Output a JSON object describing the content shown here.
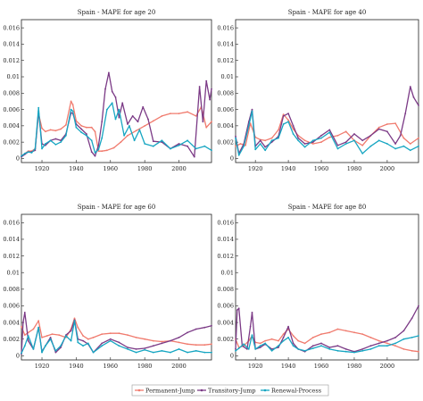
{
  "chart_data": [
    {
      "type": "line",
      "title": "Spain - MAPE for age 20",
      "xlabel": "",
      "ylabel": "",
      "xlim": [
        1908,
        2019
      ],
      "ylim": [
        -0.0005,
        0.017
      ],
      "xticks": [
        1920,
        1940,
        1960,
        1980,
        2000
      ],
      "yticks": [
        0,
        0.002,
        0.004,
        0.006,
        0.008,
        0.01,
        0.012,
        0.014,
        0.016
      ],
      "ytick_labels": [
        "0",
        "0.002",
        "0.004",
        "0.006",
        "0.008",
        "0.01",
        "0.012",
        "0.014",
        "0.016"
      ],
      "grid": false,
      "series": [
        {
          "name": "Permanent-Jump",
          "color": "#f07b6e",
          "x": [
            1908,
            1910,
            1912,
            1914,
            1916,
            1918,
            1920,
            1922,
            1925,
            1928,
            1931,
            1934,
            1937,
            1938,
            1940,
            1943,
            1946,
            1949,
            1951,
            1953,
            1955,
            1958,
            1962,
            1966,
            1970,
            1975,
            1980,
            1985,
            1990,
            1995,
            2000,
            2005,
            2010,
            2013,
            2016,
            2019
          ],
          "y": [
            0.0002,
            0.0006,
            0.0009,
            0.0009,
            0.0012,
            0.0055,
            0.0037,
            0.0033,
            0.0035,
            0.0034,
            0.0036,
            0.0041,
            0.007,
            0.0066,
            0.0046,
            0.004,
            0.0038,
            0.0038,
            0.0033,
            0.0009,
            0.0009,
            0.001,
            0.0013,
            0.002,
            0.0028,
            0.0034,
            0.004,
            0.0046,
            0.0052,
            0.0055,
            0.0055,
            0.0057,
            0.0052,
            0.0063,
            0.0038,
            0.0045
          ]
        },
        {
          "name": "Transitory-Jump",
          "color": "#7b3a86",
          "x": [
            1908,
            1910,
            1912,
            1914,
            1916,
            1918,
            1920,
            1922,
            1925,
            1928,
            1931,
            1934,
            1937,
            1938,
            1940,
            1943,
            1946,
            1949,
            1951,
            1953,
            1955,
            1957,
            1959,
            1961,
            1963,
            1965,
            1967,
            1970,
            1973,
            1976,
            1979,
            1982,
            1985,
            1990,
            1995,
            2000,
            2005,
            2009,
            2012,
            2014,
            2016,
            2018,
            2019
          ],
          "y": [
            0.0002,
            0.0005,
            0.0008,
            0.0008,
            0.001,
            0.0058,
            0.0018,
            0.0016,
            0.0022,
            0.0024,
            0.0022,
            0.003,
            0.0056,
            0.0055,
            0.0042,
            0.0036,
            0.003,
            0.0008,
            0.0003,
            0.0016,
            0.0045,
            0.0085,
            0.0105,
            0.0082,
            0.0075,
            0.005,
            0.0068,
            0.0042,
            0.0052,
            0.0045,
            0.0063,
            0.0048,
            0.0021,
            0.002,
            0.0012,
            0.0018,
            0.0015,
            0.0002,
            0.0088,
            0.0045,
            0.0095,
            0.0072,
            0.0085
          ]
        },
        {
          "name": "Renewal-Process",
          "color": "#17a6c2",
          "x": [
            1908,
            1910,
            1912,
            1914,
            1916,
            1918,
            1920,
            1922,
            1925,
            1928,
            1931,
            1934,
            1937,
            1938,
            1940,
            1943,
            1946,
            1949,
            1951,
            1953,
            1955,
            1958,
            1961,
            1963,
            1965,
            1968,
            1971,
            1974,
            1977,
            1980,
            1985,
            1990,
            1995,
            2000,
            2005,
            2010,
            2015,
            2019
          ],
          "y": [
            0.0003,
            0.0006,
            0.0008,
            0.0007,
            0.0012,
            0.0062,
            0.0012,
            0.0018,
            0.0022,
            0.0017,
            0.002,
            0.0028,
            0.006,
            0.0058,
            0.0038,
            0.0032,
            0.0028,
            0.0022,
            0.0007,
            0.0011,
            0.0025,
            0.006,
            0.0068,
            0.0048,
            0.006,
            0.0028,
            0.004,
            0.0022,
            0.0035,
            0.0018,
            0.0015,
            0.0022,
            0.0012,
            0.0016,
            0.0022,
            0.0012,
            0.0015,
            0.001
          ]
        }
      ]
    },
    {
      "type": "line",
      "title": "Spain - MAPE for age 40",
      "xlabel": "",
      "ylabel": "",
      "xlim": [
        1908,
        2019
      ],
      "ylim": [
        -0.0005,
        0.017
      ],
      "xticks": [
        1920,
        1940,
        1960,
        1980,
        2000
      ],
      "yticks": [
        0,
        0.002,
        0.004,
        0.006,
        0.008,
        0.01,
        0.012,
        0.014,
        0.016
      ],
      "ytick_labels": [
        "0",
        "0.002",
        "0.004",
        "0.006",
        "0.008",
        "0.01",
        "0.012",
        "0.014",
        "0.016"
      ],
      "grid": false,
      "series": [
        {
          "name": "Permanent-Jump",
          "color": "#f07b6e",
          "x": [
            1908,
            1911,
            1914,
            1917,
            1920,
            1923,
            1926,
            1930,
            1934,
            1937,
            1940,
            1943,
            1946,
            1950,
            1955,
            1960,
            1965,
            1970,
            1975,
            1980,
            1985,
            1990,
            1995,
            2000,
            2005,
            2010,
            2014,
            2019
          ],
          "y": [
            0.0015,
            0.0018,
            0.0016,
            0.0043,
            0.0026,
            0.0023,
            0.0022,
            0.0025,
            0.0035,
            0.0054,
            0.0047,
            0.0036,
            0.0028,
            0.0022,
            0.0018,
            0.002,
            0.0026,
            0.0028,
            0.0033,
            0.0022,
            0.0016,
            0.0028,
            0.0038,
            0.0042,
            0.0043,
            0.0025,
            0.0018,
            0.0025
          ]
        },
        {
          "name": "Transitory-Jump",
          "color": "#7b3a86",
          "x": [
            1908,
            1910,
            1913,
            1916,
            1918,
            1920,
            1923,
            1926,
            1930,
            1934,
            1937,
            1940,
            1943,
            1946,
            1950,
            1955,
            1960,
            1965,
            1970,
            1975,
            1980,
            1985,
            1990,
            1995,
            2000,
            2005,
            2008,
            2011,
            2014,
            2016,
            2019
          ],
          "y": [
            0.0027,
            0.0006,
            0.0018,
            0.0045,
            0.006,
            0.0015,
            0.0022,
            0.0014,
            0.002,
            0.0027,
            0.0052,
            0.0055,
            0.004,
            0.0025,
            0.0018,
            0.002,
            0.0028,
            0.0035,
            0.0016,
            0.002,
            0.003,
            0.0022,
            0.0028,
            0.0036,
            0.0033,
            0.0018,
            0.0028,
            0.0055,
            0.0088,
            0.0075,
            0.0065
          ]
        },
        {
          "name": "Renewal-Process",
          "color": "#17a6c2",
          "x": [
            1908,
            1910,
            1913,
            1916,
            1918,
            1920,
            1923,
            1926,
            1930,
            1934,
            1937,
            1940,
            1943,
            1946,
            1950,
            1955,
            1960,
            1965,
            1970,
            1975,
            1980,
            1985,
            1990,
            1995,
            2000,
            2005,
            2010,
            2014,
            2019
          ],
          "y": [
            0.0025,
            0.0004,
            0.0015,
            0.004,
            0.0058,
            0.0011,
            0.0018,
            0.001,
            0.0022,
            0.0025,
            0.0042,
            0.0045,
            0.003,
            0.0022,
            0.0014,
            0.0022,
            0.0025,
            0.0032,
            0.0012,
            0.0018,
            0.0022,
            0.0006,
            0.0015,
            0.0022,
            0.0018,
            0.0012,
            0.0015,
            0.001,
            0.0015
          ]
        }
      ]
    },
    {
      "type": "line",
      "title": "Spain - MAPE for age 60",
      "xlabel": "",
      "ylabel": "",
      "xlim": [
        1908,
        2019
      ],
      "ylim": [
        -0.0005,
        0.017
      ],
      "xticks": [
        1920,
        1940,
        1960,
        1980,
        2000
      ],
      "yticks": [
        0,
        0.002,
        0.004,
        0.006,
        0.008,
        0.01,
        0.012,
        0.014,
        0.016
      ],
      "ytick_labels": [
        "0",
        "0.002",
        "0.004",
        "0.006",
        "0.008",
        "0.01",
        "0.012",
        "0.014",
        "0.016"
      ],
      "grid": false,
      "series": [
        {
          "name": "Permanent-Jump",
          "color": "#f07b6e",
          "x": [
            1908,
            1910,
            1912,
            1915,
            1918,
            1920,
            1923,
            1926,
            1930,
            1934,
            1937,
            1939,
            1941,
            1944,
            1947,
            1950,
            1955,
            1960,
            1965,
            1970,
            1975,
            1980,
            1985,
            1990,
            1995,
            2000,
            2005,
            2010,
            2015,
            2019
          ],
          "y": [
            0.0035,
            0.0025,
            0.0028,
            0.0032,
            0.0042,
            0.0022,
            0.0024,
            0.0026,
            0.0025,
            0.0022,
            0.0032,
            0.0045,
            0.0034,
            0.0024,
            0.002,
            0.0022,
            0.0026,
            0.0027,
            0.0027,
            0.0025,
            0.0022,
            0.002,
            0.0018,
            0.0017,
            0.0018,
            0.0016,
            0.0014,
            0.0013,
            0.0013,
            0.0014
          ]
        },
        {
          "name": "Transitory-Jump",
          "color": "#7b3a86",
          "x": [
            1908,
            1909,
            1910,
            1912,
            1915,
            1918,
            1920,
            1922,
            1925,
            1928,
            1931,
            1934,
            1937,
            1939,
            1941,
            1944,
            1947,
            1950,
            1955,
            1960,
            1965,
            1970,
            1975,
            1980,
            1985,
            1990,
            1995,
            2000,
            2005,
            2010,
            2015,
            2019
          ],
          "y": [
            0.0002,
            0.004,
            0.0052,
            0.0018,
            0.0008,
            0.0034,
            0.0005,
            0.0012,
            0.0022,
            0.0004,
            0.001,
            0.0025,
            0.003,
            0.0043,
            0.002,
            0.0018,
            0.0014,
            0.0004,
            0.0015,
            0.002,
            0.0016,
            0.001,
            0.0008,
            0.0009,
            0.0012,
            0.0015,
            0.0018,
            0.0022,
            0.0028,
            0.0032,
            0.0034,
            0.0036
          ]
        },
        {
          "name": "Renewal-Process",
          "color": "#17a6c2",
          "x": [
            1908,
            1910,
            1912,
            1915,
            1918,
            1920,
            1922,
            1925,
            1928,
            1931,
            1934,
            1937,
            1939,
            1941,
            1944,
            1947,
            1950,
            1955,
            1960,
            1965,
            1970,
            1975,
            1980,
            1985,
            1990,
            1995,
            2000,
            2005,
            2010,
            2015,
            2019
          ],
          "y": [
            0.0003,
            0.0012,
            0.0024,
            0.0008,
            0.0034,
            0.0004,
            0.0012,
            0.002,
            0.0006,
            0.0012,
            0.0024,
            0.0018,
            0.0042,
            0.0016,
            0.0012,
            0.0015,
            0.0004,
            0.0012,
            0.0018,
            0.0012,
            0.0008,
            0.0004,
            0.0007,
            0.0004,
            0.0006,
            0.0004,
            0.0008,
            0.0004,
            0.0006,
            0.0004,
            0.0004
          ]
        }
      ]
    },
    {
      "type": "line",
      "title": "Spain - MAPE for age 80",
      "xlabel": "",
      "ylabel": "",
      "xlim": [
        1908,
        2019
      ],
      "ylim": [
        -0.0005,
        0.017
      ],
      "xticks": [
        1920,
        1940,
        1960,
        1980,
        2000
      ],
      "yticks": [
        0,
        0.002,
        0.004,
        0.006,
        0.008,
        0.01,
        0.012,
        0.014,
        0.016
      ],
      "ytick_labels": [
        "0",
        "0.002",
        "0.004",
        "0.006",
        "0.008",
        "0.01",
        "0.012",
        "0.014",
        "0.016"
      ],
      "grid": false,
      "series": [
        {
          "name": "Permanent-Jump",
          "color": "#f07b6e",
          "x": [
            1908,
            1910,
            1913,
            1916,
            1918,
            1920,
            1923,
            1926,
            1930,
            1934,
            1937,
            1940,
            1943,
            1946,
            1950,
            1955,
            1960,
            1965,
            1970,
            1975,
            1980,
            1985,
            1990,
            1995,
            2000,
            2005,
            2010,
            2015,
            2019
          ],
          "y": [
            0.002,
            0.001,
            0.0012,
            0.0018,
            0.0024,
            0.0016,
            0.0015,
            0.0018,
            0.002,
            0.0018,
            0.0026,
            0.0032,
            0.0024,
            0.0018,
            0.0015,
            0.0022,
            0.0026,
            0.0028,
            0.0032,
            0.003,
            0.0028,
            0.0026,
            0.0022,
            0.0018,
            0.0015,
            0.0012,
            0.0008,
            0.0006,
            0.0005
          ]
        },
        {
          "name": "Transitory-Jump",
          "color": "#7b3a86",
          "x": [
            1908,
            1909,
            1910,
            1912,
            1915,
            1917,
            1918,
            1920,
            1923,
            1926,
            1930,
            1934,
            1937,
            1940,
            1943,
            1946,
            1950,
            1955,
            1960,
            1965,
            1970,
            1975,
            1980,
            1985,
            1990,
            1995,
            2000,
            2005,
            2010,
            2015,
            2019
          ],
          "y": [
            0.0008,
            0.0055,
            0.0057,
            0.0012,
            0.0008,
            0.0035,
            0.0052,
            0.0008,
            0.001,
            0.0014,
            0.0008,
            0.001,
            0.0022,
            0.0035,
            0.0015,
            0.0008,
            0.0005,
            0.0012,
            0.0015,
            0.001,
            0.0012,
            0.0008,
            0.0005,
            0.0008,
            0.0012,
            0.0015,
            0.0018,
            0.0022,
            0.003,
            0.0045,
            0.006
          ]
        },
        {
          "name": "Renewal-Process",
          "color": "#17a6c2",
          "x": [
            1908,
            1910,
            1913,
            1916,
            1918,
            1920,
            1923,
            1926,
            1930,
            1934,
            1937,
            1940,
            1943,
            1946,
            1950,
            1955,
            1960,
            1965,
            1970,
            1975,
            1980,
            1985,
            1990,
            1995,
            2000,
            2005,
            2010,
            2015,
            2019
          ],
          "y": [
            0.0006,
            0.0009,
            0.0014,
            0.0008,
            0.0025,
            0.0008,
            0.0012,
            0.0015,
            0.0006,
            0.0012,
            0.0018,
            0.0022,
            0.0012,
            0.0008,
            0.0006,
            0.0009,
            0.0012,
            0.0008,
            0.0006,
            0.0005,
            0.0004,
            0.0006,
            0.0008,
            0.0012,
            0.0012,
            0.0015,
            0.002,
            0.0022,
            0.0024
          ]
        }
      ]
    }
  ],
  "legend": {
    "placement": "bottom-center",
    "items": [
      {
        "label": "Permanent-Jump",
        "color": "#f07b6e"
      },
      {
        "label": "Transitory-Jump",
        "color": "#7b3a86"
      },
      {
        "label": "Renewal-Process",
        "color": "#17a6c2"
      }
    ]
  }
}
